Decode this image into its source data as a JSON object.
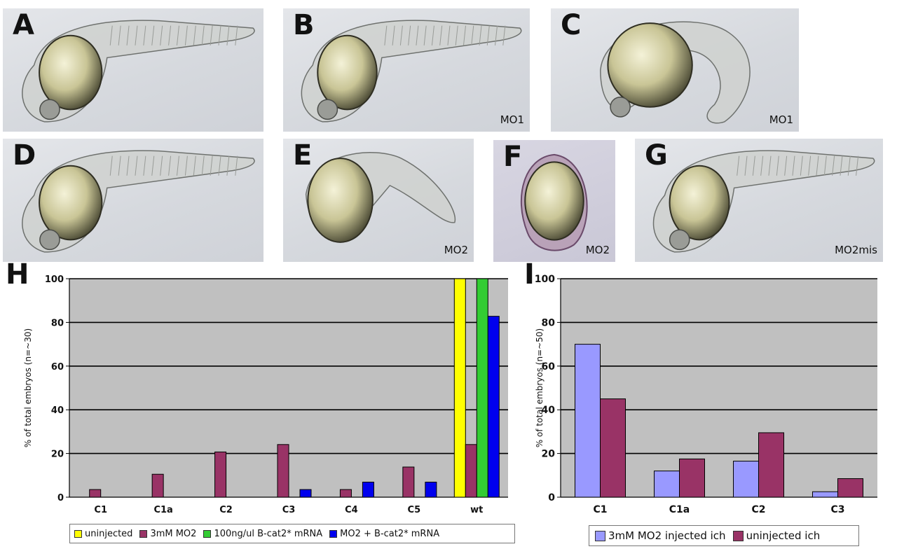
{
  "panels": [
    {
      "letter": "A",
      "tag": "",
      "view": "lateral"
    },
    {
      "letter": "B",
      "tag": "MO1",
      "view": "lateral"
    },
    {
      "letter": "C",
      "tag": "MO1",
      "view": "curled"
    },
    {
      "letter": "D",
      "tag": "",
      "view": "lateral"
    },
    {
      "letter": "E",
      "tag": "MO2",
      "view": "short"
    },
    {
      "letter": "F",
      "tag": "MO2",
      "view": "round"
    },
    {
      "letter": "G",
      "tag": "MO2mis",
      "view": "lateral"
    }
  ],
  "colors": {
    "uninjected": "#ffff00",
    "mo2": "#993366",
    "bcat": "#33cc33",
    "mo2_bcat": "#0000ee",
    "mo2_injected_ich": "#9999ff",
    "uninjected_ich": "#993366",
    "plot_bg": "#c0c0c0"
  },
  "chart_data": [
    {
      "type": "bar",
      "panel_letter": "H",
      "categories": [
        "C1",
        "C1a",
        "C2",
        "C3",
        "C4",
        "C5",
        "wt"
      ],
      "series": [
        {
          "name": "uninjected",
          "color_key": "uninjected",
          "values": [
            0,
            0,
            0,
            0,
            0,
            0,
            100
          ]
        },
        {
          "name": "3mM MO2",
          "color_key": "mo2",
          "values": [
            3.5,
            10.5,
            20.7,
            24.1,
            3.5,
            13.8,
            24.1
          ]
        },
        {
          "name": "100ng/ul B-cat2* mRNA",
          "color_key": "bcat",
          "values": [
            0,
            0,
            0,
            0,
            0,
            0,
            100
          ]
        },
        {
          "name": "MO2 + B-cat2* mRNA",
          "color_key": "mo2_bcat",
          "values": [
            0,
            0,
            0,
            3.5,
            6.9,
            6.9,
            82.8
          ]
        }
      ],
      "ylabel": "% of total embryos (n=~30)",
      "ylim": [
        0,
        100
      ],
      "yticks": [
        0,
        20,
        40,
        60,
        80,
        100
      ],
      "grid": true,
      "legend_position": "bottom"
    },
    {
      "type": "bar",
      "panel_letter": "I",
      "categories": [
        "C1",
        "C1a",
        "C2",
        "C3"
      ],
      "series": [
        {
          "name": "3mM MO2 injected ich",
          "color_key": "mo2_injected_ich",
          "values": [
            70,
            12,
            16.5,
            2.5
          ]
        },
        {
          "name": "uninjected ich",
          "color_key": "uninjected_ich",
          "values": [
            45,
            17.5,
            29.5,
            8.5
          ]
        }
      ],
      "ylabel": "% of total embryos (n=~50)",
      "ylim": [
        0,
        100
      ],
      "yticks": [
        0,
        20,
        40,
        60,
        80,
        100
      ],
      "grid": true,
      "legend_position": "bottom"
    }
  ]
}
